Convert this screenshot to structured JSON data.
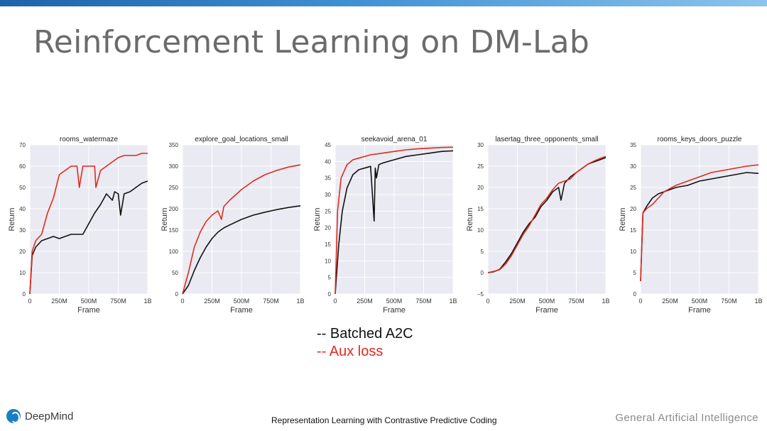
{
  "slide": {
    "title": "Reinforcement Learning on DM-Lab",
    "legend": [
      "-- Batched A2C",
      "-- Aux loss"
    ],
    "footer_center": "Representation Learning with Contrastive Predictive Coding",
    "footer_right": "General Artificial Intelligence",
    "logo_text": "DeepMind"
  },
  "colors": {
    "baseline": "#111111",
    "aux": "#e02a1e",
    "plot_bg": "#eaeaf2",
    "grid": "#ffffff",
    "title_bar": "#1e63a9"
  },
  "chart_data": [
    {
      "type": "line",
      "title": "rooms_watermaze",
      "xlabel": "Frame",
      "ylabel": "Return",
      "xlim": [
        0,
        1
      ],
      "ylim": [
        0,
        70
      ],
      "x_ticks": [
        0,
        0.25,
        0.5,
        0.75,
        1.0
      ],
      "x_tick_labels": [
        "0",
        "250M",
        "500M",
        "750M",
        "1B"
      ],
      "y_ticks": [
        0,
        10,
        20,
        30,
        40,
        50,
        60,
        70
      ],
      "y_tick_labels": [
        "0",
        "10",
        "20",
        "30",
        "40",
        "50",
        "60",
        "70"
      ],
      "grid": true,
      "series": [
        {
          "color": "#111111",
          "x": [
            0,
            0.02,
            0.05,
            0.1,
            0.15,
            0.2,
            0.25,
            0.3,
            0.35,
            0.4,
            0.45,
            0.5,
            0.55,
            0.6,
            0.65,
            0.7,
            0.72,
            0.75,
            0.77,
            0.8,
            0.85,
            0.9,
            0.95,
            1.0
          ],
          "y": [
            0,
            18,
            22,
            25,
            26,
            27,
            26,
            27,
            28,
            28,
            28,
            33,
            38,
            42,
            47,
            44,
            48,
            47,
            37,
            47,
            48,
            50,
            52,
            53
          ]
        },
        {
          "color": "#e02a1e",
          "x": [
            0,
            0.02,
            0.05,
            0.1,
            0.15,
            0.2,
            0.25,
            0.3,
            0.35,
            0.4,
            0.42,
            0.45,
            0.5,
            0.55,
            0.56,
            0.6,
            0.65,
            0.7,
            0.75,
            0.8,
            0.85,
            0.9,
            0.95,
            1.0
          ],
          "y": [
            0,
            20,
            25,
            28,
            38,
            45,
            56,
            58,
            60,
            60,
            50,
            60,
            60,
            60,
            50,
            58,
            60,
            62,
            64,
            65,
            65,
            65,
            66,
            66
          ]
        }
      ]
    },
    {
      "type": "line",
      "title": "explore_goal_locations_small",
      "xlabel": "Frame",
      "ylabel": "Return",
      "xlim": [
        0,
        1
      ],
      "ylim": [
        0,
        350
      ],
      "x_ticks": [
        0,
        0.25,
        0.5,
        0.75,
        1.0
      ],
      "x_tick_labels": [
        "0",
        "250M",
        "500M",
        "750M",
        "1B"
      ],
      "y_ticks": [
        0,
        50,
        100,
        150,
        200,
        250,
        300,
        350
      ],
      "y_tick_labels": [
        "0",
        "50",
        "100",
        "150",
        "200",
        "250",
        "300",
        "350"
      ],
      "grid": true,
      "series": [
        {
          "color": "#111111",
          "x": [
            0,
            0.05,
            0.1,
            0.15,
            0.2,
            0.25,
            0.3,
            0.35,
            0.4,
            0.5,
            0.6,
            0.7,
            0.8,
            0.9,
            1.0
          ],
          "y": [
            0,
            20,
            55,
            85,
            110,
            130,
            145,
            155,
            162,
            175,
            185,
            192,
            198,
            203,
            207
          ]
        },
        {
          "color": "#e02a1e",
          "x": [
            0,
            0.05,
            0.1,
            0.15,
            0.2,
            0.25,
            0.3,
            0.33,
            0.35,
            0.4,
            0.5,
            0.6,
            0.7,
            0.8,
            0.9,
            1.0
          ],
          "y": [
            0,
            50,
            110,
            145,
            170,
            185,
            195,
            175,
            205,
            220,
            245,
            265,
            280,
            290,
            298,
            303
          ]
        }
      ]
    },
    {
      "type": "line",
      "title": "seekavoid_arena_01",
      "xlabel": "Frame",
      "ylabel": "Return",
      "xlim": [
        0,
        1
      ],
      "ylim": [
        0,
        45
      ],
      "x_ticks": [
        0,
        0.25,
        0.5,
        0.75,
        1.0
      ],
      "x_tick_labels": [
        "0",
        "250M",
        "500M",
        "750M",
        "1B"
      ],
      "y_ticks": [
        0,
        5,
        10,
        15,
        20,
        25,
        30,
        35,
        40,
        45
      ],
      "y_tick_labels": [
        "0",
        "5",
        "10",
        "15",
        "20",
        "25",
        "30",
        "35",
        "40",
        "45"
      ],
      "grid": true,
      "series": [
        {
          "color": "#111111",
          "x": [
            0,
            0.03,
            0.06,
            0.1,
            0.15,
            0.2,
            0.25,
            0.3,
            0.33,
            0.34,
            0.35,
            0.37,
            0.4,
            0.5,
            0.6,
            0.7,
            0.8,
            0.9,
            1.0
          ],
          "y": [
            0,
            15,
            25,
            32,
            36,
            37.5,
            38,
            38.5,
            22,
            38,
            35,
            39,
            39.5,
            40.5,
            41.5,
            42,
            42.5,
            43,
            43.2
          ]
        },
        {
          "color": "#e02a1e",
          "x": [
            0,
            0.02,
            0.05,
            0.1,
            0.15,
            0.2,
            0.3,
            0.4,
            0.5,
            0.6,
            0.7,
            0.8,
            0.9,
            1.0
          ],
          "y": [
            0,
            25,
            35,
            39,
            40.5,
            41,
            42,
            42.5,
            43,
            43.5,
            43.8,
            44,
            44.2,
            44.3
          ]
        }
      ]
    },
    {
      "type": "line",
      "title": "lasertag_three_opponents_small",
      "xlabel": "Frame",
      "ylabel": "Return",
      "xlim": [
        0,
        1
      ],
      "ylim": [
        -5,
        30
      ],
      "x_ticks": [
        0,
        0.25,
        0.5,
        0.75,
        1.0
      ],
      "x_tick_labels": [
        "0",
        "250M",
        "500M",
        "750M",
        "1B"
      ],
      "y_ticks": [
        -5,
        0,
        5,
        10,
        15,
        20,
        25,
        30
      ],
      "y_tick_labels": [
        "−5",
        "0",
        "5",
        "10",
        "15",
        "20",
        "25",
        "30"
      ],
      "grid": true,
      "series": [
        {
          "color": "#111111",
          "x": [
            0,
            0.05,
            0.1,
            0.15,
            0.2,
            0.25,
            0.3,
            0.35,
            0.4,
            0.45,
            0.5,
            0.55,
            0.6,
            0.62,
            0.65,
            0.7,
            0.75,
            0.8,
            0.85,
            0.9,
            0.95,
            1.0
          ],
          "y": [
            0,
            0.2,
            0.8,
            2.5,
            4.5,
            7,
            9.5,
            11.5,
            13,
            15.5,
            17,
            19,
            20,
            17,
            21,
            22.5,
            23.5,
            24.5,
            25.5,
            26,
            26.5,
            27
          ]
        },
        {
          "color": "#e02a1e",
          "x": [
            0,
            0.05,
            0.1,
            0.15,
            0.2,
            0.25,
            0.3,
            0.35,
            0.4,
            0.45,
            0.5,
            0.55,
            0.6,
            0.65,
            0.7,
            0.75,
            0.8,
            0.85,
            0.9,
            0.95,
            1.0
          ],
          "y": [
            0,
            0.3,
            0.7,
            2,
            4,
            6.5,
            9,
            11,
            13.5,
            16,
            17.5,
            19.5,
            21,
            21.5,
            22,
            23.5,
            24.5,
            25.5,
            26.2,
            26.8,
            27.3
          ]
        }
      ]
    },
    {
      "type": "line",
      "title": "rooms_keys_doors_puzzle",
      "xlabel": "Frame",
      "ylabel": "Return",
      "xlim": [
        0,
        1
      ],
      "ylim": [
        0,
        35
      ],
      "x_ticks": [
        0,
        0.25,
        0.5,
        0.75,
        1.0
      ],
      "x_tick_labels": [
        "0",
        "250M",
        "500M",
        "750M",
        "1B"
      ],
      "y_ticks": [
        0,
        5,
        10,
        15,
        20,
        25,
        30,
        35
      ],
      "y_tick_labels": [
        "0",
        "5",
        "10",
        "15",
        "20",
        "25",
        "30",
        "35"
      ],
      "grid": true,
      "series": [
        {
          "color": "#111111",
          "x": [
            0,
            0.02,
            0.05,
            0.1,
            0.15,
            0.2,
            0.3,
            0.4,
            0.5,
            0.6,
            0.7,
            0.8,
            0.9,
            1.0
          ],
          "y": [
            3,
            19,
            20.5,
            22.5,
            23.5,
            24,
            25,
            25.5,
            26.5,
            27,
            27.5,
            28,
            28.5,
            28.3
          ]
        },
        {
          "color": "#e02a1e",
          "x": [
            0,
            0.02,
            0.05,
            0.1,
            0.15,
            0.2,
            0.3,
            0.4,
            0.5,
            0.6,
            0.7,
            0.8,
            0.9,
            1.0
          ],
          "y": [
            3,
            19,
            20,
            21,
            22.5,
            24,
            25.5,
            26.5,
            27.5,
            28.5,
            29,
            29.5,
            30,
            30.3
          ]
        }
      ]
    }
  ]
}
